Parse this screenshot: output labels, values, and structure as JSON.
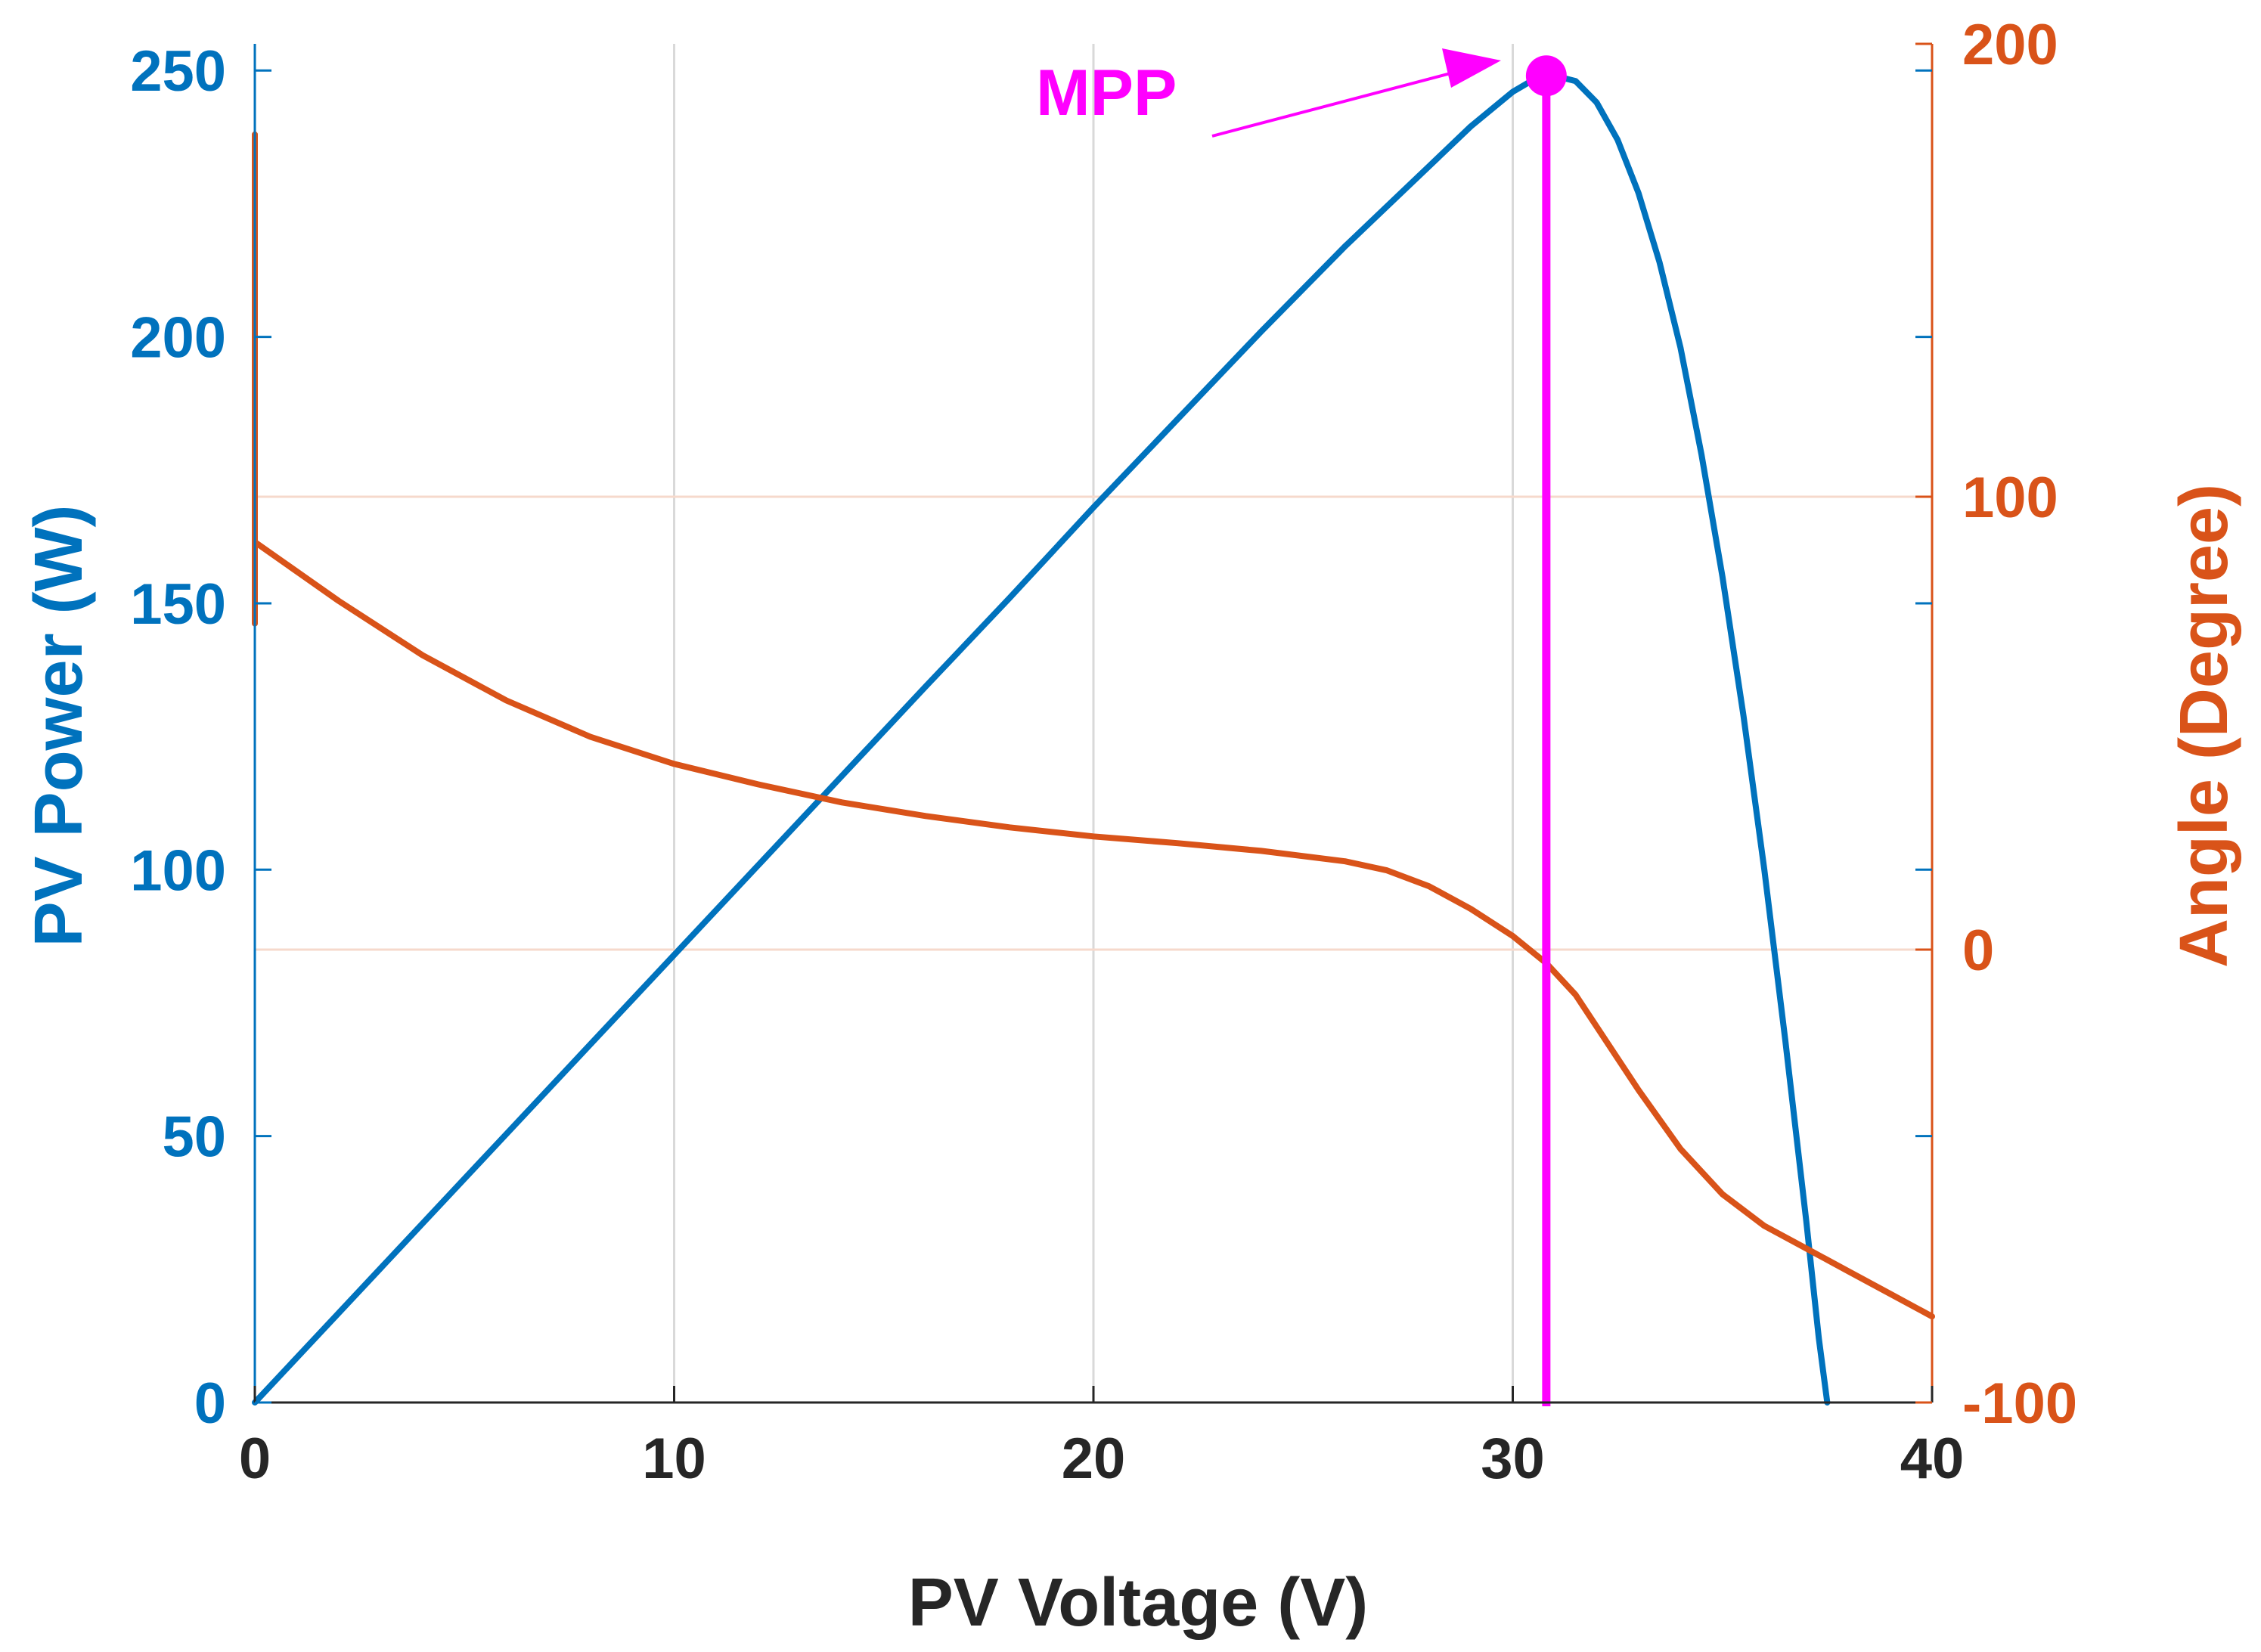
{
  "chart_data": {
    "type": "line",
    "title": "",
    "xlabel": "PV Voltage (V)",
    "ylabel_left": "PV Power (W)",
    "ylabel_right": "Angle  (Degree)",
    "xlim": [
      0,
      40
    ],
    "ylim_left": [
      0,
      255
    ],
    "ylim_right": [
      -100,
      200
    ],
    "xticks": [
      0,
      10,
      20,
      30,
      40
    ],
    "yticks_left": [
      0,
      50,
      100,
      150,
      200,
      250
    ],
    "yticks_right": [
      -100,
      0,
      100,
      200
    ],
    "xtick_labels": [
      "0",
      "10",
      "20",
      "30",
      "40"
    ],
    "ytick_labels_left": [
      "0",
      "50",
      "100",
      "150",
      "200",
      "250"
    ],
    "ytick_labels_right": [
      "-100",
      "0",
      "100",
      "200"
    ],
    "grid": true,
    "colors": {
      "power": "#0072BD",
      "angle": "#D95319",
      "mpp": "#FF00FF",
      "grid": "#d9d9d9",
      "axis": "#262626"
    },
    "series": [
      {
        "name": "PV Power",
        "axis": "left",
        "x": [
          0,
          2,
          4,
          6,
          8,
          10,
          12,
          14,
          16,
          18,
          20,
          22,
          24,
          26,
          28,
          29,
          30,
          30.5,
          31,
          31.5,
          32,
          32.5,
          33,
          33.5,
          34,
          34.5,
          35,
          35.5,
          36,
          36.5,
          37,
          37.3,
          37.5
        ],
        "y": [
          0,
          16.8,
          33.6,
          50.4,
          67.2,
          84,
          100.8,
          117.6,
          134.4,
          151,
          168,
          184.5,
          201,
          217,
          232,
          239.5,
          246,
          248.3,
          249,
          248,
          244,
          237,
          227,
          214,
          198,
          178,
          155,
          129,
          100,
          68,
          34,
          12,
          0
        ]
      },
      {
        "name": "Angle",
        "axis": "right",
        "x": [
          0,
          2,
          4,
          6,
          8,
          10,
          12,
          14,
          16,
          18,
          20,
          22,
          24,
          26,
          27,
          28,
          29,
          30,
          30.8,
          31.5,
          32,
          33,
          34,
          35,
          36,
          37,
          38,
          39,
          40
        ],
        "y": [
          90,
          77,
          65,
          55,
          47,
          41,
          36.5,
          32.5,
          29.5,
          27,
          25,
          23.5,
          21.8,
          19.5,
          17.5,
          14,
          9,
          3,
          -3,
          -10,
          -17,
          -31,
          -44,
          -54,
          -61,
          -66,
          -71,
          -76,
          -81
        ]
      },
      {
        "name": "Angle transient",
        "axis": "right",
        "x": [
          0,
          0
        ],
        "y": [
          72,
          180
        ]
      }
    ],
    "mpp": {
      "label": "MPP",
      "voltage": 30.8,
      "power": 249
    }
  }
}
